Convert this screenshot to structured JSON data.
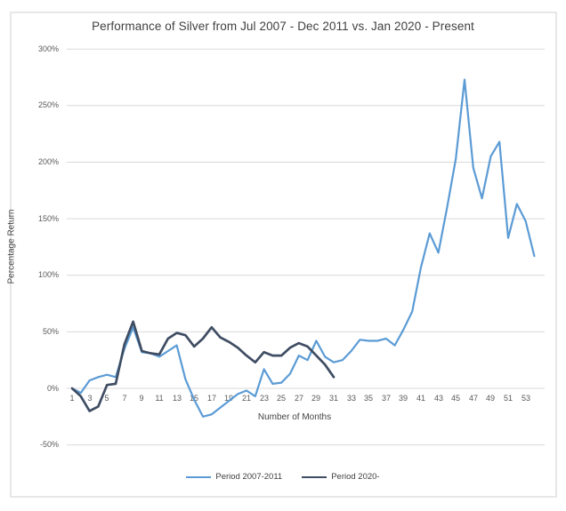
{
  "chart_data": {
    "type": "line",
    "title": "Performance of Silver from Jul 2007 - Dec 2011 vs. Jan 2020 - Present",
    "xlabel": "Number of Months",
    "ylabel": "Percentage Return",
    "legend_position": "bottom",
    "grid": "horizontal-only",
    "ylim": [
      -50,
      300
    ],
    "y_ticks": [
      {
        "value": 300,
        "label": "300%"
      },
      {
        "value": 250,
        "label": "250%"
      },
      {
        "value": 200,
        "label": "200%"
      },
      {
        "value": 150,
        "label": "150%"
      },
      {
        "value": 100,
        "label": "100%"
      },
      {
        "value": 50,
        "label": "50%"
      },
      {
        "value": 0,
        "label": "0%"
      },
      {
        "value": -50,
        "label": "-50%"
      }
    ],
    "x_ticks": [
      1,
      3,
      5,
      7,
      9,
      11,
      13,
      15,
      17,
      19,
      21,
      23,
      25,
      27,
      29,
      31,
      33,
      35,
      37,
      39,
      41,
      43,
      45,
      47,
      49,
      51,
      53
    ],
    "x_unit": "months",
    "series": [
      {
        "name": "Period 2007-2011",
        "color": "#5B9BD5",
        "x_start": 1,
        "values": [
          0,
          -4,
          7,
          10,
          12,
          10,
          35,
          54,
          32,
          31,
          28,
          33,
          38,
          8,
          -10,
          -25,
          -23,
          -17,
          -11,
          -5,
          -2,
          -7,
          17,
          4,
          5,
          13,
          29,
          25,
          42,
          28,
          23,
          25,
          33,
          43,
          42,
          42,
          44,
          38,
          52,
          68,
          107,
          137,
          120,
          160,
          203,
          273,
          195,
          168,
          205,
          218,
          133,
          163,
          148,
          117
        ]
      },
      {
        "name": "Period 2020-",
        "color": "#3F4D63",
        "x_start": 1,
        "values": [
          0,
          -7,
          -20,
          -16,
          3,
          4,
          39,
          59,
          33,
          31,
          30,
          44,
          49,
          47,
          37,
          44,
          54,
          45,
          41,
          36,
          29,
          23,
          32,
          29,
          29,
          36,
          40,
          37,
          29,
          21,
          10
        ]
      }
    ]
  },
  "colors": {
    "gridline": "#D9D9D9",
    "frame_border": "#E7E7E7",
    "title_text": "#3F3F3F",
    "tick_text": "#595959"
  }
}
